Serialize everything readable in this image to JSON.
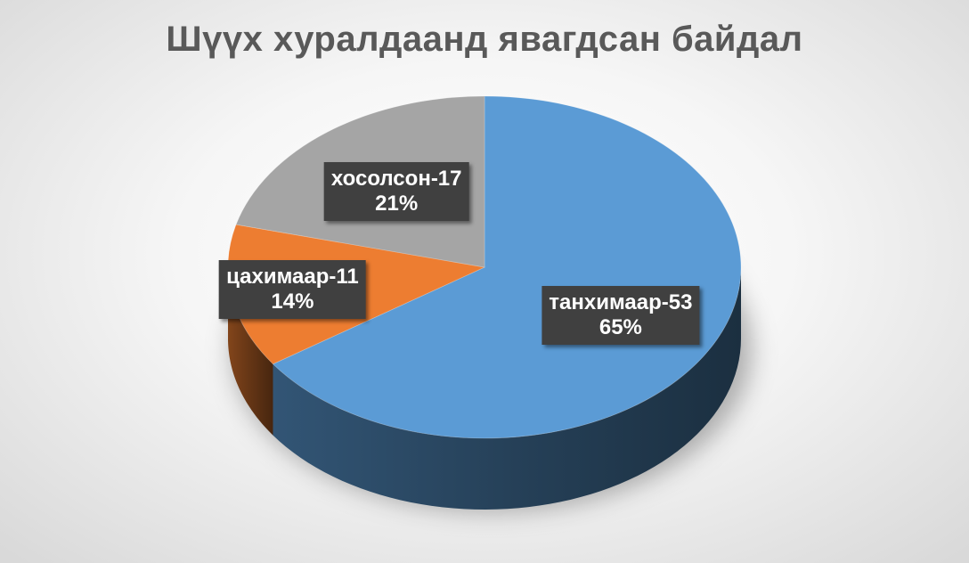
{
  "chart_data": {
    "type": "pie",
    "title": "Шүүх хуралдаанд явагдсан байдал",
    "slices": [
      {
        "label": "танхимаар-53",
        "value": 53,
        "percent": "65%",
        "color": "#5B9BD5"
      },
      {
        "label": "цахимаар-11",
        "value": 11,
        "percent": "14%",
        "color": "#ED7D31"
      },
      {
        "label": "хосолсон-17",
        "value": 17,
        "percent": "21%",
        "color": "#A5A5A5"
      }
    ],
    "legend": "none",
    "style": "3d"
  }
}
